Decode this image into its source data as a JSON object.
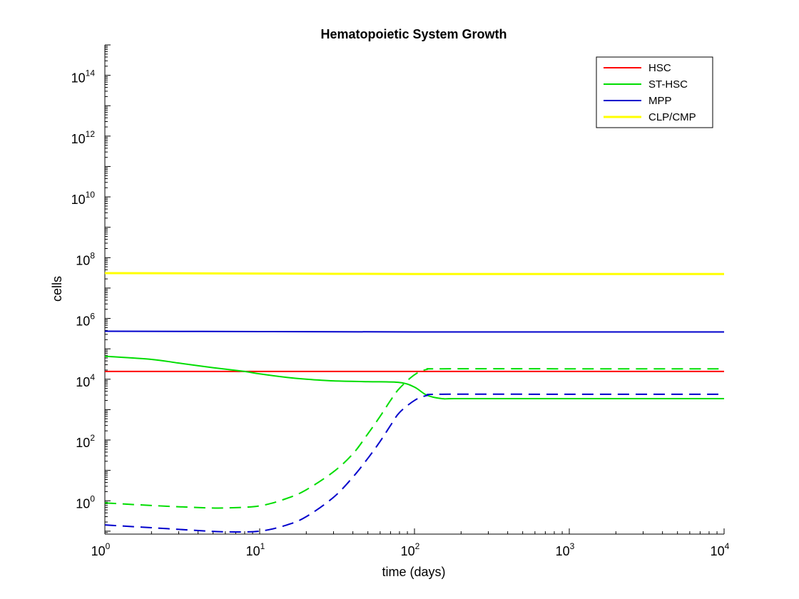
{
  "chart_data": {
    "type": "line",
    "title": "Hematopoietic System Growth",
    "xlabel": "time (days)",
    "ylabel": "cells",
    "x_scale": "log",
    "y_scale": "log",
    "xlim": [
      1,
      10000
    ],
    "ylim": [
      0.08,
      1000000000000000.0
    ],
    "x_ticks": [
      {
        "base": "10",
        "exp": "0",
        "value": 1
      },
      {
        "base": "10",
        "exp": "1",
        "value": 10
      },
      {
        "base": "10",
        "exp": "2",
        "value": 100
      },
      {
        "base": "10",
        "exp": "3",
        "value": 1000
      },
      {
        "base": "10",
        "exp": "4",
        "value": 10000
      }
    ],
    "y_ticks": [
      {
        "base": "10",
        "exp": "0",
        "value": 1
      },
      {
        "base": "10",
        "exp": "2",
        "value": 100
      },
      {
        "base": "10",
        "exp": "4",
        "value": 10000
      },
      {
        "base": "10",
        "exp": "6",
        "value": 1000000
      },
      {
        "base": "10",
        "exp": "8",
        "value": 100000000
      },
      {
        "base": "10",
        "exp": "10",
        "value": 10000000000
      },
      {
        "base": "10",
        "exp": "12",
        "value": 1000000000000
      },
      {
        "base": "10",
        "exp": "14",
        "value": 100000000000000
      }
    ],
    "grid": false,
    "legend": {
      "position": "top-right",
      "entries": [
        {
          "label": "HSC",
          "color": "#ff0000"
        },
        {
          "label": "ST-HSC",
          "color": "#00dd00"
        },
        {
          "label": "MPP",
          "color": "#0000cc"
        },
        {
          "label": "CLP/CMP",
          "color": "#ffff00"
        }
      ]
    },
    "series": [
      {
        "label": "HSC",
        "color": "#ff0000",
        "dash": false,
        "x": [
          1,
          10,
          100,
          1000,
          10000
        ],
        "y": [
          18000,
          18000,
          18000,
          18000,
          18000
        ]
      },
      {
        "label": "ST-HSC",
        "color": "#00dd00",
        "dash": false,
        "x": [
          1,
          2,
          3,
          5,
          8,
          10,
          15,
          20,
          30,
          50,
          80,
          100,
          120,
          150,
          200,
          1000,
          10000
        ],
        "y": [
          57000,
          45000,
          34000,
          24000,
          18000,
          15000,
          11500,
          10000,
          8800,
          8300,
          7800,
          5500,
          3000,
          2300,
          2300,
          2300,
          2300
        ]
      },
      {
        "label": "MPP",
        "color": "#0000cc",
        "dash": false,
        "x": [
          1,
          10,
          100,
          1000,
          10000
        ],
        "y": [
          380000,
          370000,
          360000,
          360000,
          360000
        ]
      },
      {
        "label": "CLP/CMP",
        "color": "#ffff00",
        "dash": false,
        "x": [
          1,
          10,
          100,
          1000,
          10000
        ],
        "y": [
          31000000,
          30000000,
          29000000,
          29000000,
          29000000
        ]
      },
      {
        "label": "ST-HSC (dashed)",
        "color": "#00dd00",
        "dash": true,
        "x": [
          1,
          2,
          4,
          6,
          10,
          15,
          20,
          30,
          40,
          50,
          60,
          70,
          80,
          100,
          120,
          150,
          1000,
          10000
        ],
        "y": [
          0.85,
          0.7,
          0.6,
          0.58,
          0.68,
          1.2,
          2.3,
          9,
          35,
          160,
          600,
          2000,
          5000,
          14000,
          21000,
          22000,
          22000,
          22000
        ]
      },
      {
        "label": "MPP (dashed)",
        "color": "#0000cc",
        "dash": true,
        "x": [
          1,
          2,
          4,
          6,
          10,
          15,
          20,
          30,
          40,
          50,
          60,
          70,
          80,
          100,
          120,
          150,
          1000,
          10000
        ],
        "y": [
          0.16,
          0.13,
          0.105,
          0.095,
          0.1,
          0.16,
          0.3,
          1.3,
          6,
          25,
          90,
          300,
          800,
          2000,
          2900,
          3200,
          3200,
          3200
        ]
      }
    ]
  }
}
